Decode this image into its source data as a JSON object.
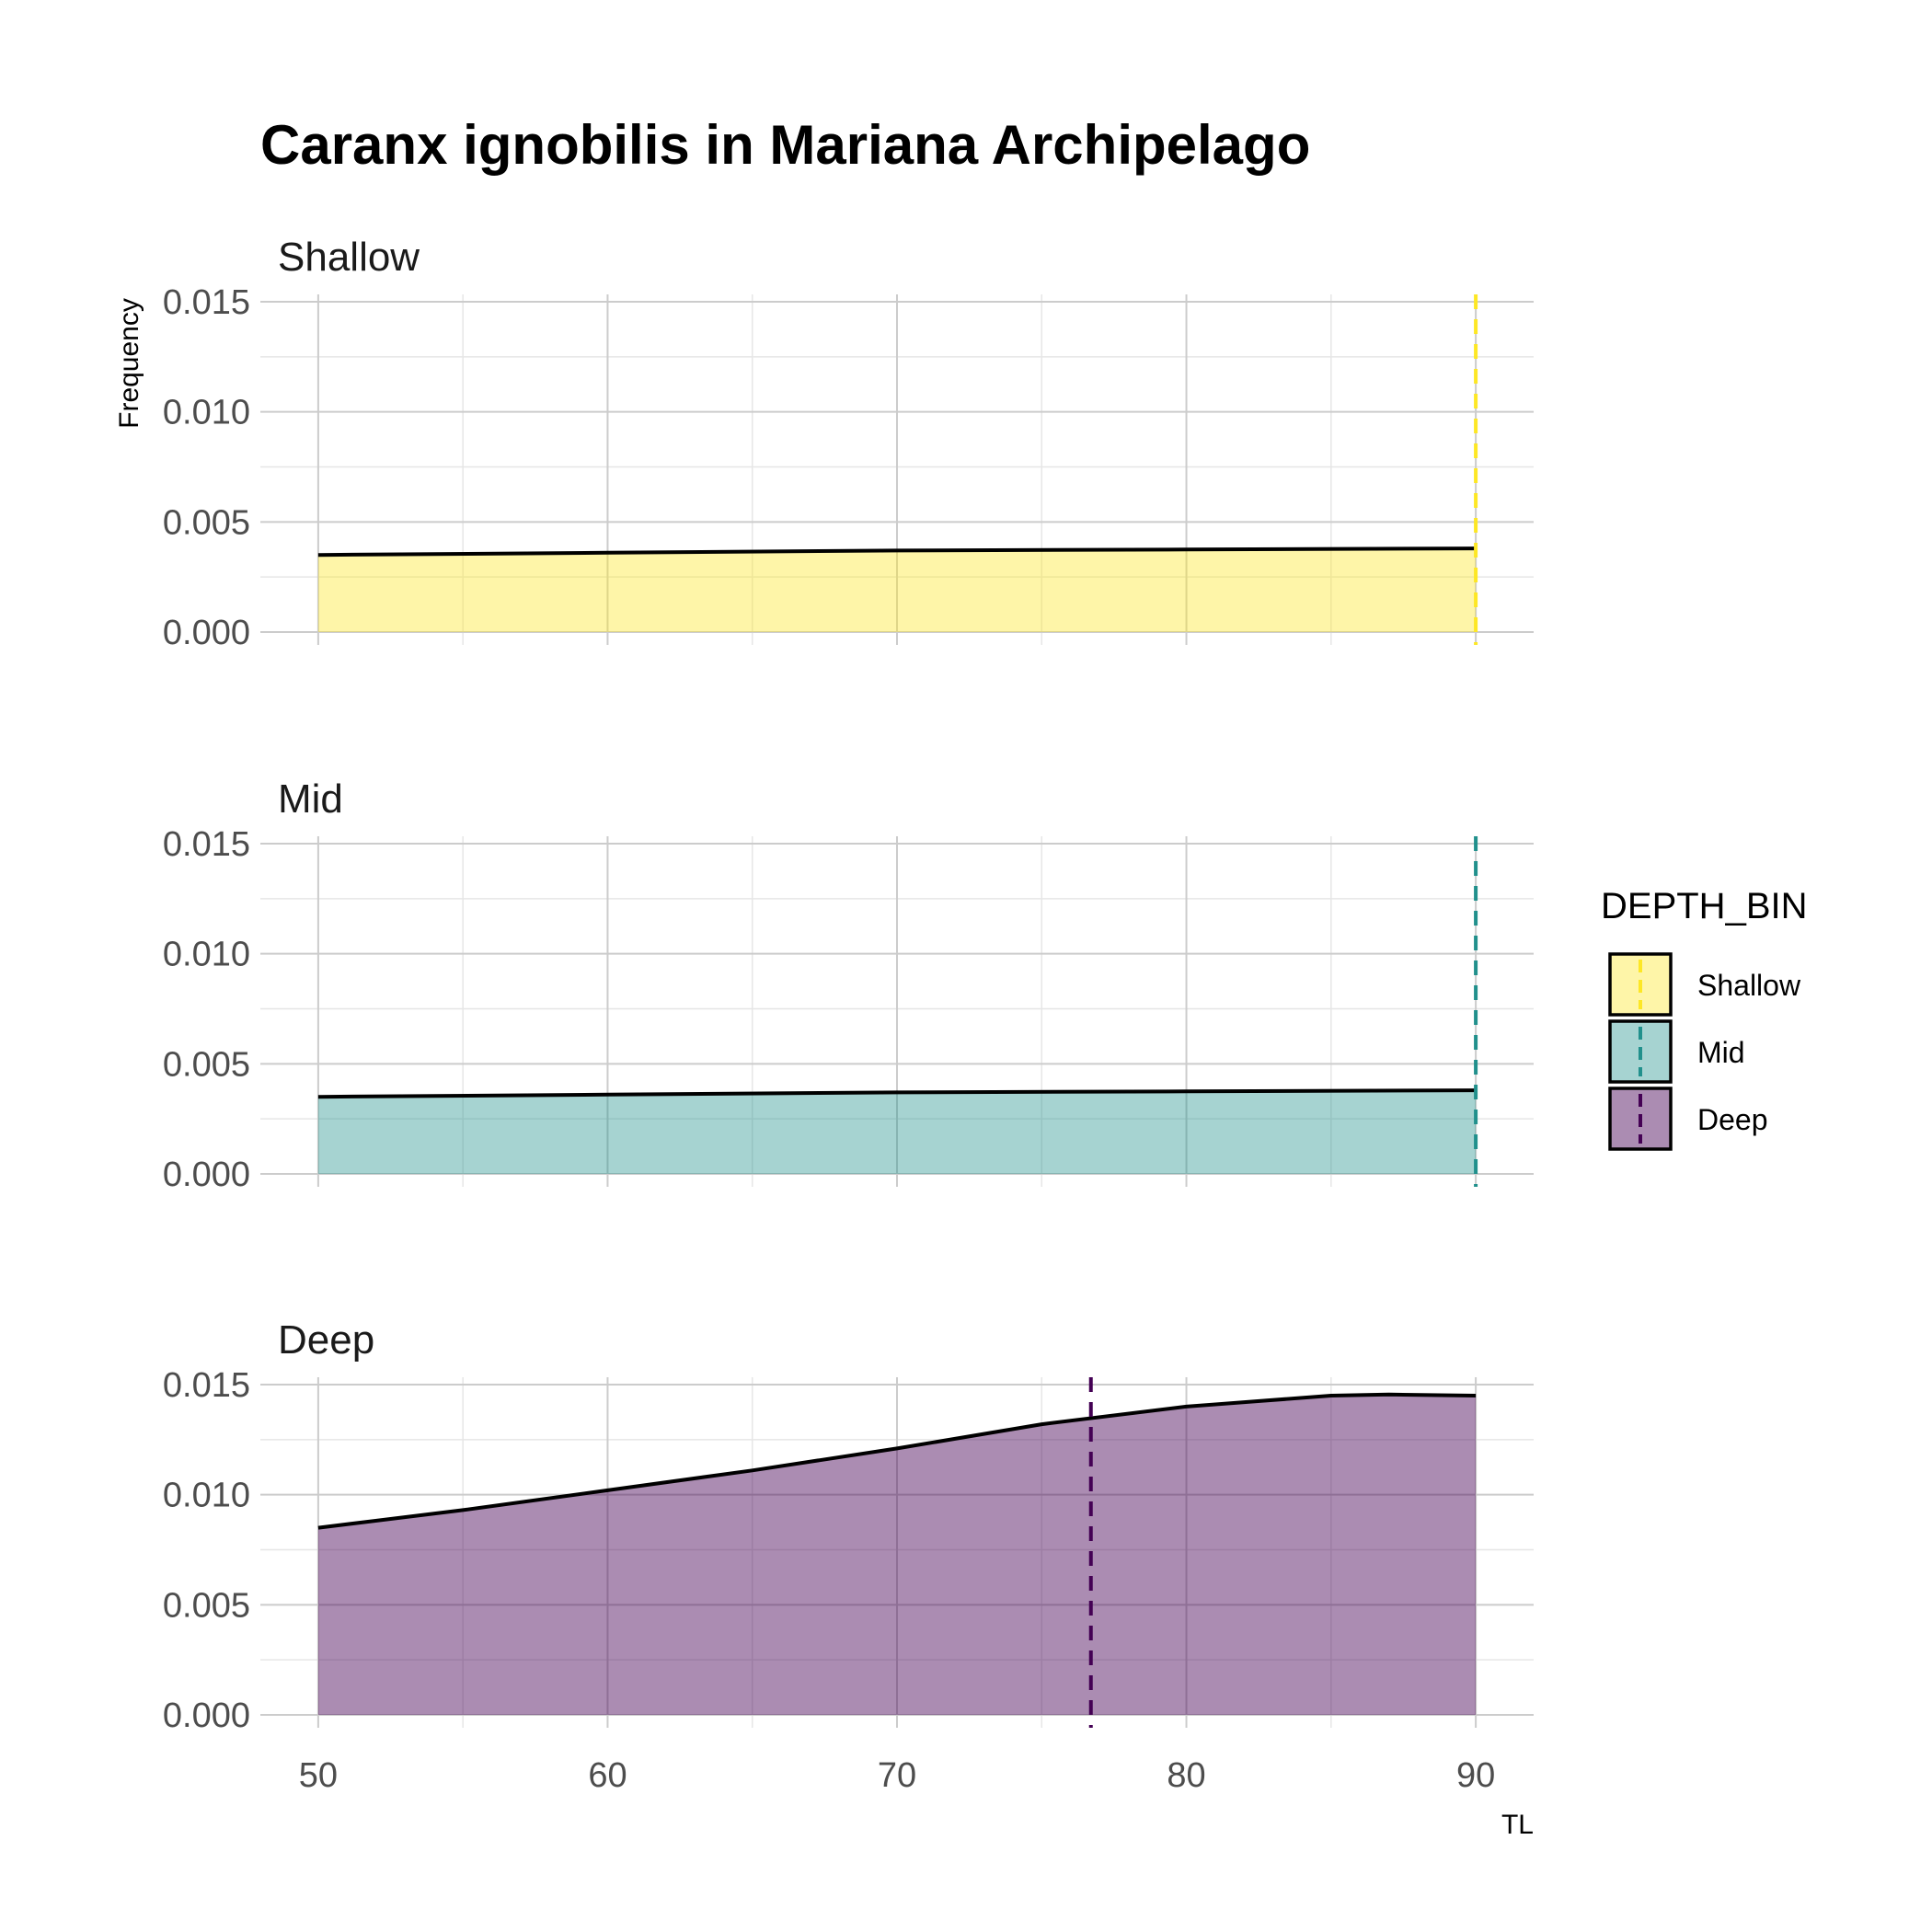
{
  "chart_data": {
    "type": "area",
    "title": "Caranx ignobilis in Mariana Archipelago",
    "xlabel": "TL",
    "ylabel": "Frequency",
    "xlim": [
      48,
      92
    ],
    "ylim": [
      0,
      0.015
    ],
    "x_ticks": [
      "50",
      "60",
      "70",
      "80",
      "90"
    ],
    "y_ticks": [
      "0.000",
      "0.005",
      "0.010",
      "0.015"
    ],
    "grid": true,
    "legend": {
      "title": "DEPTH_BIN",
      "position": "right",
      "entries": [
        "Shallow",
        "Mid",
        "Deep"
      ]
    },
    "panels": [
      {
        "name": "Shallow",
        "color": "#FDE725",
        "fill_alpha": 0.4,
        "mean_line": 90,
        "x": [
          50,
          60,
          70,
          80,
          90
        ],
        "y": [
          0.0035,
          0.0036,
          0.0037,
          0.00375,
          0.0038
        ]
      },
      {
        "name": "Mid",
        "color": "#21908C",
        "fill_alpha": 0.4,
        "mean_line": 90,
        "x": [
          50,
          60,
          70,
          80,
          90
        ],
        "y": [
          0.0035,
          0.0036,
          0.0037,
          0.00375,
          0.0038
        ]
      },
      {
        "name": "Deep",
        "color": "#440154",
        "fill_alpha": 0.45,
        "mean_line": 76.7,
        "x": [
          50,
          55,
          60,
          65,
          70,
          75,
          80,
          85,
          87,
          90
        ],
        "y": [
          0.0085,
          0.0093,
          0.0102,
          0.0111,
          0.0121,
          0.0132,
          0.014,
          0.0145,
          0.01455,
          0.0145
        ]
      }
    ]
  }
}
